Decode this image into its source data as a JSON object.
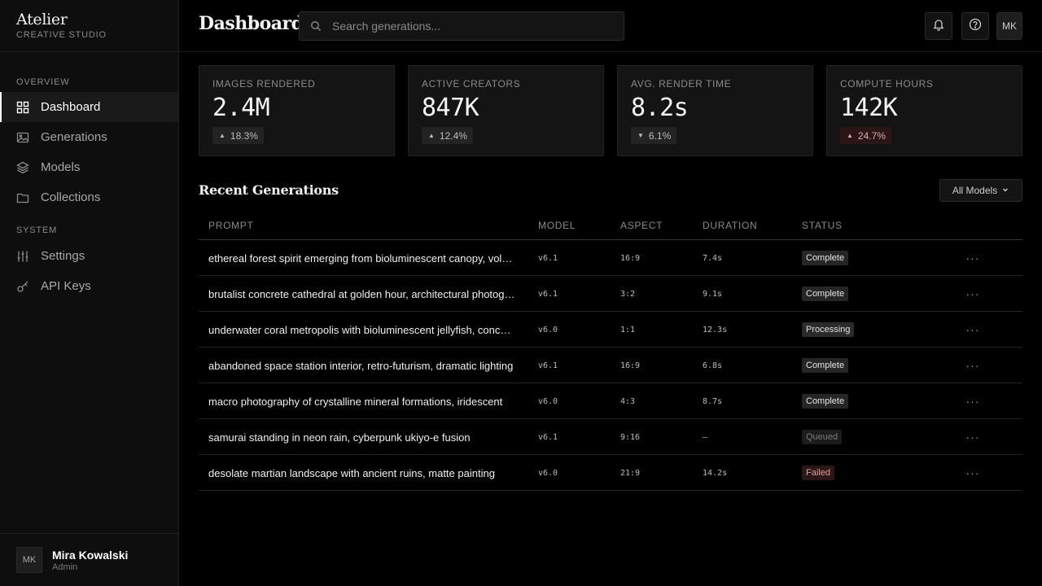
{
  "brand": {
    "name": "Atelier",
    "sub": "CREATIVE STUDIO"
  },
  "nav": {
    "overview_label": "OVERVIEW",
    "system_label": "SYSTEM",
    "items": [
      {
        "label": "Dashboard",
        "icon": "grid-icon",
        "active": true
      },
      {
        "label": "Generations",
        "icon": "image-icon"
      },
      {
        "label": "Models",
        "icon": "layers-icon"
      },
      {
        "label": "Collections",
        "icon": "folder-icon"
      },
      {
        "label": "Settings",
        "icon": "sliders-icon"
      },
      {
        "label": "API Keys",
        "icon": "key-icon"
      }
    ]
  },
  "user": {
    "initials": "MK",
    "name": "Mira Kowalski",
    "role": "Admin"
  },
  "header": {
    "title": "Dashboard",
    "search_placeholder": "Search generations...",
    "avatar_initials": "MK"
  },
  "stats": [
    {
      "label": "IMAGES RENDERED",
      "value": "2.4M",
      "delta": "18.3%",
      "direction": "up"
    },
    {
      "label": "ACTIVE CREATORS",
      "value": "847K",
      "delta": "12.4%",
      "direction": "up"
    },
    {
      "label": "AVG. RENDER TIME",
      "value": "8.2s",
      "delta": "6.1%",
      "direction": "down"
    },
    {
      "label": "COMPUTE HOURS",
      "value": "142K",
      "delta": "24.7%",
      "direction": "up"
    }
  ],
  "recent": {
    "title": "Recent Generations",
    "filter_label": "All Models",
    "columns": [
      "PROMPT",
      "MODEL",
      "ASPECT",
      "DURATION",
      "STATUS"
    ],
    "rows": [
      {
        "prompt": "ethereal forest spirit emerging from bioluminescent canopy, volumetric fog",
        "model": "v6.1",
        "aspect": "16:9",
        "duration": "7.4s",
        "status": "Complete"
      },
      {
        "prompt": "brutalist concrete cathedral at golden hour, architectural photography",
        "model": "v6.1",
        "aspect": "3:2",
        "duration": "9.1s",
        "status": "Complete"
      },
      {
        "prompt": "underwater coral metropolis with bioluminescent jellyfish, concept art",
        "model": "v6.0",
        "aspect": "1:1",
        "duration": "12.3s",
        "status": "Processing"
      },
      {
        "prompt": "abandoned space station interior, retro-futurism, dramatic lighting",
        "model": "v6.1",
        "aspect": "16:9",
        "duration": "6.8s",
        "status": "Complete"
      },
      {
        "prompt": "macro photography of crystalline mineral formations, iridescent",
        "model": "v6.0",
        "aspect": "4:3",
        "duration": "8.7s",
        "status": "Complete"
      },
      {
        "prompt": "samurai standing in neon rain, cyberpunk ukiyo-e fusion",
        "model": "v6.1",
        "aspect": "9:16",
        "duration": "—",
        "status": "Queued"
      },
      {
        "prompt": "desolate martian landscape with ancient ruins, matte painting",
        "model": "v6.0",
        "aspect": "21:9",
        "duration": "14.2s",
        "status": "Failed"
      }
    ],
    "more_glyph": "···"
  }
}
